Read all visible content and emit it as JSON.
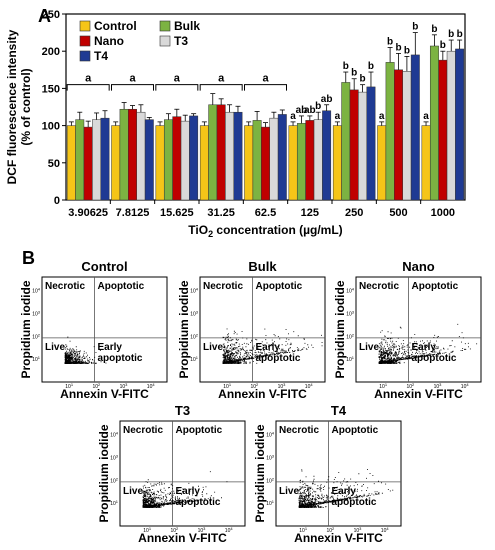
{
  "chart_data": [
    {
      "type": "bar",
      "panel_label": "A",
      "ylabel_line1": "DCF fluorescence intensity",
      "ylabel_line2": "(% of control)",
      "xlabel_main": "TiO",
      "xlabel_sub": "2",
      "xlabel_rest": " concentration (µg/mL)",
      "ylim": [
        0,
        250
      ],
      "yticks": [
        "0",
        "50",
        "100",
        "150",
        "200",
        "250"
      ],
      "categories": [
        "3.90625",
        "7.8125",
        "15.625",
        "31.25",
        "62.5",
        "125",
        "250",
        "500",
        "1000"
      ],
      "series": [
        {
          "name": "Control",
          "color": "#f5c518",
          "values": [
            100,
            100,
            100,
            100,
            100,
            100,
            100,
            100,
            100
          ],
          "errors": [
            5,
            5,
            5,
            5,
            5,
            5,
            5,
            5,
            5
          ]
        },
        {
          "name": "Bulk",
          "color": "#7cb342",
          "values": [
            108,
            122,
            108,
            128,
            107,
            103,
            158,
            185,
            207
          ],
          "errors": [
            10,
            9,
            8,
            15,
            12,
            10,
            14,
            20,
            15
          ]
        },
        {
          "name": "Nano",
          "color": "#c00000",
          "values": [
            98,
            122,
            112,
            128,
            98,
            107,
            148,
            175,
            188
          ],
          "errors": [
            8,
            5,
            10,
            8,
            6,
            6,
            15,
            22,
            12
          ]
        },
        {
          "name": "T3",
          "color": "#d9d9d9",
          "values": [
            108,
            118,
            106,
            118,
            110,
            108,
            145,
            173,
            200
          ],
          "errors": [
            9,
            10,
            8,
            10,
            8,
            10,
            10,
            20,
            15
          ]
        },
        {
          "name": "T4",
          "color": "#1f3a93",
          "values": [
            110,
            108,
            113,
            118,
            115,
            120,
            152,
            195,
            203
          ],
          "errors": [
            10,
            3,
            3,
            8,
            6,
            8,
            20,
            30,
            12
          ]
        }
      ],
      "bracket_groups": [
        {
          "category_index": 0,
          "label": "a"
        },
        {
          "category_index": 1,
          "label": "a"
        },
        {
          "category_index": 2,
          "label": "a"
        },
        {
          "category_index": 3,
          "label": "a"
        },
        {
          "category_index": 4,
          "label": "a"
        }
      ],
      "significance_letters": [
        {
          "category_index": 5,
          "letters": [
            "a",
            "ab",
            "ab",
            "b",
            "ab"
          ]
        },
        {
          "category_index": 6,
          "letters": [
            "a",
            "b",
            "b",
            "b",
            "b"
          ]
        },
        {
          "category_index": 7,
          "letters": [
            "a",
            "b",
            "b",
            "b",
            "b"
          ]
        },
        {
          "category_index": 8,
          "letters": [
            "a",
            "b",
            "b",
            "b",
            "b"
          ]
        }
      ],
      "legend_placement": "top-left",
      "grid": false
    },
    {
      "type": "scatter",
      "panel_label": "B",
      "note": "flow cytometry dot plots; density rendered as random points",
      "plots": [
        {
          "title": "Control",
          "spread": 0.0,
          "count": 900
        },
        {
          "title": "Bulk",
          "spread": 1.0,
          "count": 1000
        },
        {
          "title": "Nano",
          "spread": 0.9,
          "count": 1000
        },
        {
          "title": "T3",
          "spread": 0.6,
          "count": 1000
        },
        {
          "title": "T4",
          "spread": 1.0,
          "count": 1000
        }
      ],
      "xlabel": "Annexin V-FITC",
      "ylabel": "Propidium iodide",
      "quadrants": {
        "top_left": "Necrotic",
        "top_right": "Apoptotic",
        "bottom_left": "Live",
        "bottom_right_line1": "Early",
        "bottom_right_line2": "apoptotic"
      },
      "ticks": [
        "10",
        "1",
        "2",
        "3",
        "4"
      ],
      "tick_base": "10"
    }
  ]
}
